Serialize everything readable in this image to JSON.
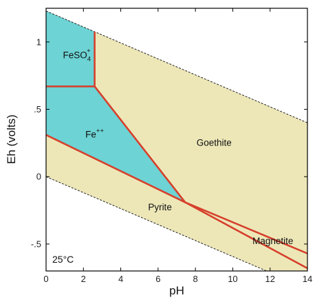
{
  "chart_data": {
    "type": "area",
    "xlabel": "pH",
    "ylabel": "Eh (volts)",
    "xlim": [
      0,
      14
    ],
    "ylim": [
      -0.7,
      1.25
    ],
    "x_ticks": [
      0,
      2,
      4,
      6,
      8,
      10,
      12,
      14
    ],
    "x_tick_labels": [
      "0",
      "2",
      "4",
      "6",
      "8",
      "10",
      "12",
      "14"
    ],
    "y_ticks": [
      -0.5,
      0,
      0.5,
      1
    ],
    "y_tick_labels": [
      "-.5",
      "0",
      ".5",
      "1"
    ],
    "annotation": "25°C",
    "colors": {
      "aqueous_fill": "#6dd3d4",
      "solid_fill": "#ede7b8",
      "boundary": "#d6402c",
      "water_limit": "#222222",
      "frame": "#000000"
    },
    "water_stability_limits": [
      {
        "points": [
          [
            0,
            1.23
          ],
          [
            14,
            0.4
          ]
        ]
      },
      {
        "points": [
          [
            0,
            0.0
          ],
          [
            14,
            -0.83
          ]
        ]
      }
    ],
    "regions": [
      {
        "label": "FeSO",
        "sub": "4",
        "sup": "+",
        "phase": "aqueous",
        "label_at": [
          1.65,
          0.88
        ]
      },
      {
        "label": "Fe",
        "sup": "++",
        "phase": "aqueous",
        "label_at": [
          2.6,
          0.29
        ]
      },
      {
        "label": "Goethite",
        "phase": "solid",
        "label_at": [
          9.0,
          0.23
        ]
      },
      {
        "label": "Pyrite",
        "phase": "solid",
        "label_at": [
          6.1,
          -0.25
        ]
      },
      {
        "label": "Magnetite",
        "phase": "solid",
        "label_at": [
          12.15,
          -0.5
        ]
      }
    ],
    "boundaries": [
      {
        "name": "FeSO4+/Goethite",
        "points": [
          [
            2.6,
            1.07
          ],
          [
            2.6,
            0.67
          ]
        ]
      },
      {
        "name": "FeSO4+/Fe++",
        "points": [
          [
            0,
            0.67
          ],
          [
            2.6,
            0.67
          ]
        ]
      },
      {
        "name": "Fe++/Goethite",
        "points": [
          [
            2.6,
            0.67
          ],
          [
            7.45,
            -0.19
          ]
        ]
      },
      {
        "name": "Fe++/Pyrite",
        "points": [
          [
            0,
            0.31
          ],
          [
            7.45,
            -0.19
          ]
        ]
      },
      {
        "name": "Goethite/Magnetite",
        "points": [
          [
            7.45,
            -0.19
          ],
          [
            14,
            -0.57
          ]
        ]
      },
      {
        "name": "Pyrite/Magnetite",
        "points": [
          [
            7.45,
            -0.19
          ],
          [
            14,
            -0.68
          ]
        ]
      }
    ]
  }
}
